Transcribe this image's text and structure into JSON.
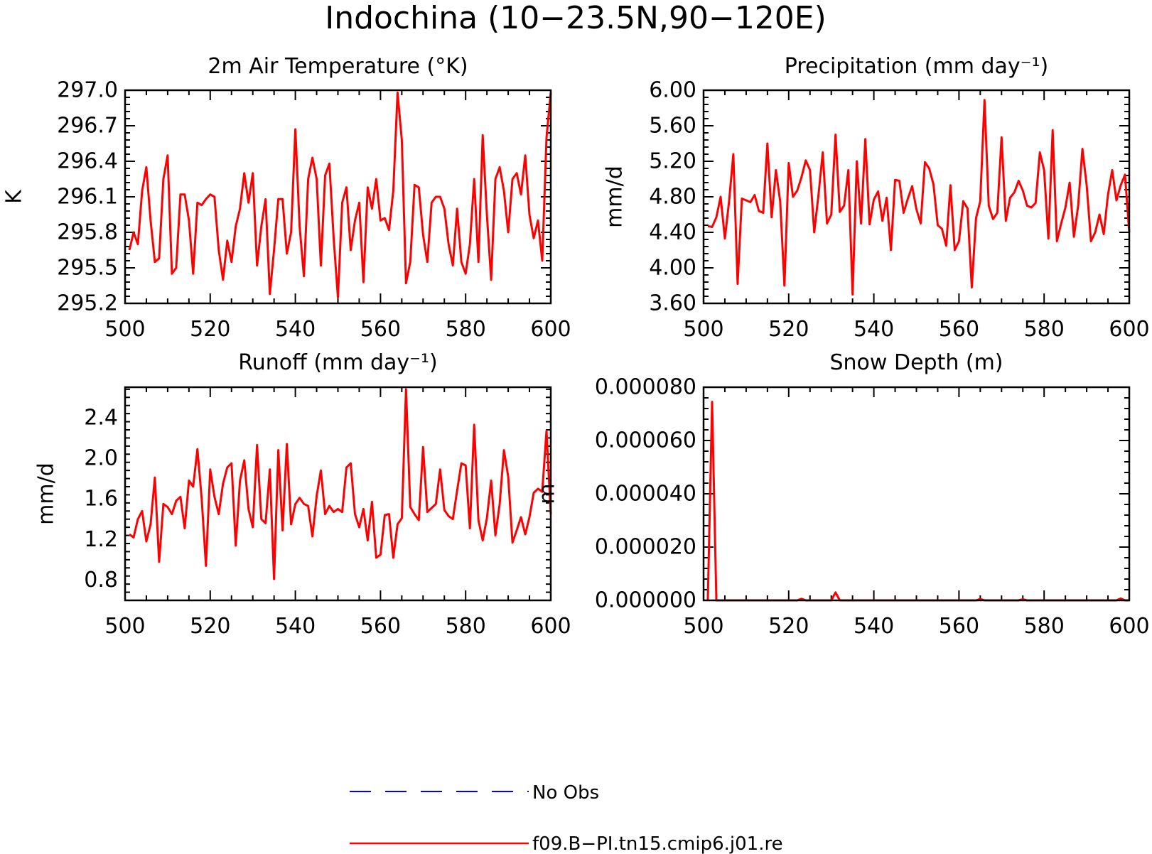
{
  "figure": {
    "title": "Indochina (10−23.5N,90−120E)"
  },
  "colors": {
    "model_line": "#ff0000",
    "obs_line": "#0000ff",
    "axes": "#000000"
  },
  "legend": {
    "placement": "bottom-center",
    "items": [
      {
        "label": "No Obs",
        "style": "dashed",
        "color": "#0000ff"
      },
      {
        "label": "f09.B−PI.tn15.cmip6.j01.re",
        "style": "solid",
        "color": "#ff0000"
      }
    ]
  },
  "chart_data": [
    {
      "type": "line",
      "title": "2m Air Temperature (°K)",
      "xlabel": "",
      "ylabel": "K",
      "xlim": [
        500,
        600
      ],
      "ylim": [
        295.2,
        297.0
      ],
      "xticks": [
        500,
        520,
        540,
        560,
        580,
        600
      ],
      "ytick_labels": [
        "295.2",
        "295.5",
        "295.8",
        "296.1",
        "296.4",
        "296.7",
        "297.0"
      ],
      "grid": false,
      "series": [
        {
          "color": "#ff0000",
          "x_start": 501,
          "x_step": 1,
          "values": [
            295.65,
            295.8,
            295.7,
            296.15,
            296.35,
            295.9,
            295.55,
            295.58,
            296.25,
            296.45,
            295.45,
            295.5,
            296.12,
            296.12,
            295.9,
            295.45,
            296.05,
            296.03,
            296.08,
            296.12,
            296.1,
            295.65,
            295.4,
            295.73,
            295.55,
            295.85,
            296.0,
            296.3,
            296.05,
            296.3,
            295.52,
            295.85,
            296.08,
            295.28,
            295.65,
            296.08,
            296.08,
            295.62,
            295.8,
            296.67,
            295.85,
            295.43,
            296.25,
            296.43,
            296.25,
            295.52,
            296.28,
            296.38,
            295.75,
            295.25,
            296.05,
            296.18,
            295.65,
            295.9,
            296.05,
            295.38,
            296.18,
            296.0,
            296.25,
            295.9,
            295.92,
            295.82,
            296.15,
            296.98,
            296.58,
            295.37,
            295.55,
            296.2,
            296.18,
            295.78,
            295.55,
            296.05,
            296.1,
            296.1,
            296.0,
            295.7,
            295.52,
            296.0,
            295.55,
            295.45,
            295.7,
            296.25,
            295.55,
            296.62,
            295.95,
            295.4,
            296.25,
            296.35,
            296.15,
            295.8,
            296.25,
            296.3,
            296.12,
            296.45,
            295.95,
            295.75,
            295.9,
            295.56,
            296.6,
            296.98
          ]
        }
      ]
    },
    {
      "type": "line",
      "title": "Precipitation (mm day⁻¹)",
      "xlabel": "",
      "ylabel": "mm/d",
      "xlim": [
        500,
        600
      ],
      "ylim": [
        3.6,
        6.0
      ],
      "xticks": [
        500,
        520,
        540,
        560,
        580,
        600
      ],
      "ytick_labels": [
        "3.60",
        "4.00",
        "4.40",
        "4.80",
        "5.20",
        "5.60",
        "6.00"
      ],
      "grid": false,
      "series": [
        {
          "color": "#ff0000",
          "x_start": 501,
          "x_step": 1,
          "values": [
            4.47,
            4.46,
            4.57,
            4.8,
            4.33,
            4.75,
            5.28,
            3.82,
            4.78,
            4.76,
            4.74,
            4.82,
            4.64,
            4.62,
            5.4,
            4.57,
            5.1,
            4.75,
            3.8,
            5.18,
            4.8,
            4.87,
            5.02,
            5.21,
            5.1,
            4.4,
            4.82,
            5.3,
            4.5,
            4.6,
            5.5,
            4.63,
            4.7,
            5.1,
            3.7,
            5.2,
            4.5,
            5.45,
            4.49,
            4.77,
            4.86,
            4.53,
            4.79,
            4.2,
            4.99,
            4.98,
            4.62,
            4.78,
            4.92,
            4.66,
            4.5,
            5.19,
            5.12,
            4.94,
            4.48,
            4.44,
            4.25,
            4.93,
            4.2,
            4.3,
            4.75,
            4.67,
            3.78,
            4.56,
            4.75,
            5.89,
            4.7,
            4.55,
            4.62,
            5.47,
            4.53,
            4.79,
            4.85,
            4.98,
            4.87,
            4.7,
            4.68,
            4.73,
            5.3,
            5.1,
            4.33,
            5.55,
            4.3,
            4.5,
            4.68,
            4.96,
            4.35,
            4.7,
            5.34,
            4.93,
            4.3,
            4.4,
            4.6,
            4.38,
            4.82,
            5.1,
            4.76,
            4.93,
            5.05,
            4.4
          ]
        }
      ]
    },
    {
      "type": "line",
      "title": "Runoff (mm day⁻¹)",
      "xlabel": "",
      "ylabel": "mm/d",
      "xlim": [
        500,
        600
      ],
      "ylim": [
        0.6,
        2.7
      ],
      "xticks": [
        500,
        520,
        540,
        560,
        580,
        600
      ],
      "ytick_labels": [
        "0.8",
        "1.2",
        "1.6",
        "2.0",
        "2.4"
      ],
      "grid": false,
      "series": [
        {
          "color": "#ff0000",
          "x_start": 501,
          "x_step": 1,
          "values": [
            1.25,
            1.22,
            1.4,
            1.48,
            1.18,
            1.35,
            1.81,
            0.98,
            1.55,
            1.52,
            1.45,
            1.58,
            1.62,
            1.31,
            1.78,
            1.72,
            2.09,
            1.6,
            0.94,
            1.89,
            1.62,
            1.45,
            1.75,
            1.91,
            1.95,
            1.14,
            1.78,
            1.98,
            1.5,
            1.32,
            2.13,
            1.4,
            1.36,
            1.89,
            0.81,
            2.08,
            1.29,
            2.14,
            1.35,
            1.55,
            1.61,
            1.55,
            1.53,
            1.23,
            1.63,
            1.88,
            1.45,
            1.53,
            1.47,
            1.5,
            1.47,
            1.91,
            1.95,
            1.45,
            1.32,
            1.5,
            1.19,
            1.57,
            1.02,
            1.05,
            1.44,
            1.45,
            1.02,
            1.35,
            1.41,
            2.68,
            1.52,
            1.45,
            1.39,
            2.11,
            1.47,
            1.51,
            1.55,
            1.89,
            1.49,
            1.43,
            1.4,
            1.68,
            1.95,
            1.93,
            1.31,
            2.33,
            1.39,
            1.19,
            1.41,
            1.78,
            1.24,
            1.55,
            2.08,
            1.82,
            1.17,
            1.29,
            1.42,
            1.25,
            1.42,
            1.66,
            1.7,
            1.67,
            2.27,
            1.45
          ]
        }
      ]
    },
    {
      "type": "line",
      "title": "Snow Depth (m)",
      "xlabel": "",
      "ylabel": "m",
      "xlim": [
        500,
        600
      ],
      "ylim": [
        0,
        8e-05
      ],
      "xticks": [
        500,
        520,
        540,
        560,
        580,
        600
      ],
      "ytick_labels": [
        "0.000000",
        "0.000020",
        "0.000040",
        "0.000060",
        "0.000080"
      ],
      "grid": false,
      "series": [
        {
          "color": "#ff0000",
          "x": [
            501,
            502,
            503,
            504,
            522,
            523,
            524,
            530,
            531,
            532,
            564,
            565,
            566,
            574,
            575,
            576,
            597,
            598,
            599,
            600
          ],
          "values": [
            0,
            7.45e-05,
            0,
            0,
            0,
            6e-07,
            0,
            0,
            3e-06,
            0,
            0,
            5e-07,
            0,
            0,
            4e-07,
            0,
            0,
            7e-07,
            0,
            0
          ]
        }
      ]
    }
  ]
}
